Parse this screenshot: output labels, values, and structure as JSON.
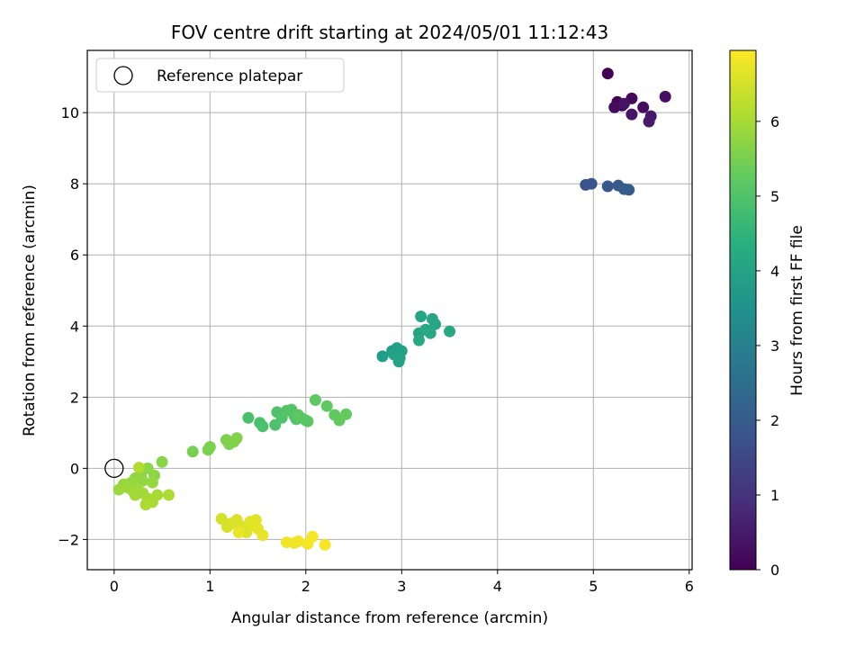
{
  "chart_data": {
    "type": "scatter",
    "title": "FOV centre drift starting at 2024/05/01 11:12:43",
    "xlabel": "Angular distance from reference (arcmin)",
    "ylabel": "Rotation from reference (arcmin)",
    "xlim": [
      -0.28,
      6.03
    ],
    "ylim": [
      -2.85,
      11.75
    ],
    "xticks": [
      0,
      1,
      2,
      3,
      4,
      5,
      6
    ],
    "yticks": [
      -2,
      0,
      2,
      4,
      6,
      8,
      10
    ],
    "ytick_labels": [
      "−2",
      "0",
      "2",
      "4",
      "6",
      "8",
      "10"
    ],
    "grid": true,
    "legend_position": "top-left",
    "legend": [
      {
        "label": "Reference platepar",
        "marker": "open-circle",
        "x": 0,
        "y": 0
      }
    ],
    "colorbar": {
      "label": "Hours from first FF file",
      "colormap": "viridis",
      "range": [
        0,
        6.95
      ],
      "ticks": [
        0,
        1,
        2,
        3,
        4,
        5,
        6
      ]
    },
    "points": [
      [
        5.15,
        11.1,
        0.0
      ],
      [
        5.25,
        10.3,
        0.05
      ],
      [
        5.3,
        10.2,
        0.1
      ],
      [
        5.4,
        10.4,
        0.15
      ],
      [
        5.22,
        10.15,
        0.2
      ],
      [
        5.52,
        10.15,
        0.25
      ],
      [
        5.75,
        10.45,
        0.3
      ],
      [
        5.32,
        10.25,
        0.35
      ],
      [
        5.4,
        9.95,
        0.4
      ],
      [
        5.6,
        9.9,
        0.45
      ],
      [
        5.58,
        9.75,
        0.5
      ],
      [
        4.92,
        7.97,
        1.8
      ],
      [
        4.98,
        8.0,
        1.85
      ],
      [
        5.15,
        7.93,
        1.9
      ],
      [
        5.26,
        7.95,
        1.95
      ],
      [
        5.32,
        7.85,
        2.0
      ],
      [
        5.37,
        7.83,
        2.05
      ],
      [
        2.8,
        3.15,
        3.85
      ],
      [
        2.9,
        3.3,
        3.9
      ],
      [
        2.95,
        3.38,
        3.92
      ],
      [
        2.98,
        3.1,
        3.95
      ],
      [
        3.0,
        3.3,
        3.98
      ],
      [
        2.92,
        3.2,
        4.0
      ],
      [
        2.97,
        3.0,
        4.02
      ],
      [
        3.18,
        3.8,
        4.05
      ],
      [
        3.2,
        4.27,
        4.08
      ],
      [
        3.32,
        4.2,
        4.1
      ],
      [
        3.35,
        4.05,
        4.12
      ],
      [
        3.25,
        3.9,
        4.14
      ],
      [
        3.3,
        3.8,
        4.16
      ],
      [
        3.5,
        3.85,
        4.18
      ],
      [
        3.18,
        3.6,
        4.2
      ],
      [
        1.4,
        1.42,
        4.9
      ],
      [
        1.52,
        1.28,
        4.92
      ],
      [
        1.55,
        1.18,
        4.94
      ],
      [
        1.68,
        1.22,
        4.96
      ],
      [
        1.7,
        1.58,
        4.98
      ],
      [
        1.75,
        1.42,
        5.0
      ],
      [
        1.8,
        1.62,
        5.02
      ],
      [
        1.85,
        1.65,
        5.04
      ],
      [
        1.88,
        1.48,
        5.06
      ],
      [
        1.9,
        1.38,
        5.08
      ],
      [
        1.95,
        1.42,
        5.1
      ],
      [
        2.0,
        1.35,
        5.12
      ],
      [
        2.02,
        1.32,
        5.14
      ],
      [
        1.92,
        1.5,
        5.16
      ],
      [
        2.1,
        1.92,
        5.18
      ],
      [
        2.22,
        1.75,
        5.2
      ],
      [
        2.3,
        1.5,
        5.22
      ],
      [
        2.35,
        1.35,
        5.24
      ],
      [
        2.42,
        1.52,
        5.26
      ],
      [
        0.82,
        0.47,
        5.5
      ],
      [
        0.98,
        0.52,
        5.52
      ],
      [
        1.0,
        0.6,
        5.54
      ],
      [
        1.17,
        0.8,
        5.56
      ],
      [
        1.2,
        0.68,
        5.58
      ],
      [
        1.25,
        0.75,
        5.6
      ],
      [
        1.28,
        0.85,
        5.62
      ],
      [
        0.5,
        0.18,
        5.7
      ],
      [
        0.35,
        0.0,
        5.72
      ],
      [
        0.42,
        -0.2,
        5.74
      ],
      [
        0.28,
        -0.2,
        5.76
      ],
      [
        0.22,
        -0.28,
        5.78
      ],
      [
        0.3,
        -0.35,
        5.8
      ],
      [
        0.4,
        -0.4,
        5.82
      ],
      [
        0.18,
        -0.4,
        5.84
      ],
      [
        0.1,
        -0.45,
        5.86
      ],
      [
        0.05,
        -0.6,
        5.88
      ],
      [
        0.15,
        -0.55,
        5.9
      ],
      [
        0.2,
        -0.65,
        5.92
      ],
      [
        0.25,
        -0.6,
        5.94
      ],
      [
        0.3,
        -0.7,
        5.96
      ],
      [
        0.22,
        -0.75,
        5.98
      ],
      [
        0.35,
        -0.85,
        6.0
      ],
      [
        0.45,
        -0.75,
        6.02
      ],
      [
        0.4,
        -0.95,
        6.04
      ],
      [
        0.33,
        -1.02,
        6.06
      ],
      [
        0.57,
        -0.75,
        6.08
      ],
      [
        0.26,
        0.02,
        6.1
      ],
      [
        1.12,
        -1.42,
        6.5
      ],
      [
        1.18,
        -1.65,
        6.52
      ],
      [
        1.22,
        -1.55,
        6.54
      ],
      [
        1.28,
        -1.45,
        6.56
      ],
      [
        1.32,
        -1.62,
        6.58
      ],
      [
        1.35,
        -1.72,
        6.6
      ],
      [
        1.38,
        -1.8,
        6.62
      ],
      [
        1.42,
        -1.5,
        6.64
      ],
      [
        1.45,
        -1.6,
        6.66
      ],
      [
        1.48,
        -1.45,
        6.68
      ],
      [
        1.5,
        -1.7,
        6.7
      ],
      [
        1.55,
        -1.88,
        6.72
      ],
      [
        1.3,
        -1.8,
        6.74
      ],
      [
        1.8,
        -2.08,
        6.78
      ],
      [
        1.88,
        -2.1,
        6.8
      ],
      [
        1.92,
        -2.05,
        6.82
      ],
      [
        2.02,
        -2.12,
        6.84
      ],
      [
        2.07,
        -1.92,
        6.86
      ],
      [
        2.2,
        -2.15,
        6.9
      ]
    ]
  }
}
